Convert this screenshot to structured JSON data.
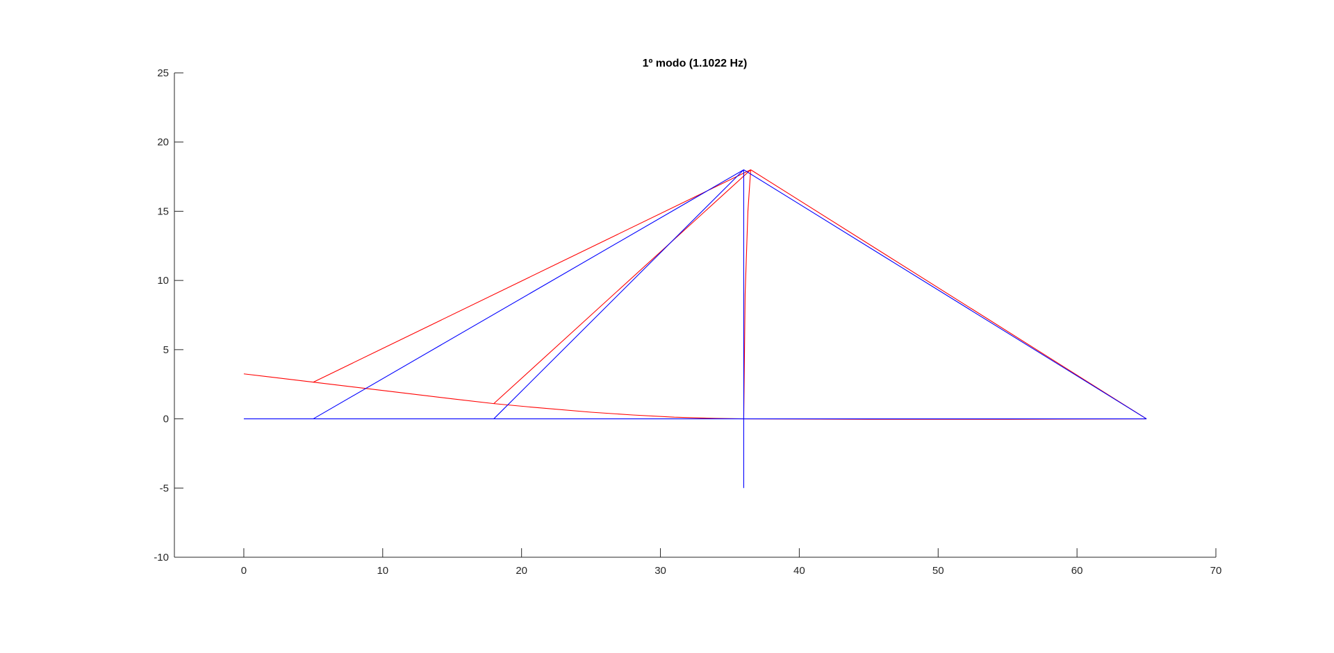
{
  "chart_data": {
    "type": "line",
    "title": "1º modo (1.1022 Hz)",
    "xlabel": "",
    "ylabel": "",
    "xlim": [
      -5,
      70
    ],
    "ylim": [
      -10,
      25
    ],
    "xticks": [
      0,
      10,
      20,
      30,
      40,
      50,
      60,
      70
    ],
    "yticks": [
      -10,
      -5,
      0,
      5,
      10,
      15,
      20,
      25
    ],
    "xtick_labels": [
      "0",
      "10",
      "20",
      "30",
      "40",
      "50",
      "60",
      "70"
    ],
    "ytick_labels": [
      "-10",
      "-5",
      "0",
      "5",
      "10",
      "15",
      "20",
      "25"
    ],
    "grid": false,
    "series": [
      {
        "color": "#ff0000",
        "segments": [
          [
            [
              0,
              3.25
            ],
            [
              5,
              2.65
            ],
            [
              10,
              2.05
            ],
            [
              15,
              1.45
            ],
            [
              18,
              1.1
            ],
            [
              21,
              0.82
            ],
            [
              25,
              0.48
            ],
            [
              28,
              0.28
            ],
            [
              31,
              0.12
            ],
            [
              34,
              0.03
            ],
            [
              36,
              0.0
            ]
          ],
          [
            [
              36,
              0.0
            ],
            [
              45,
              -0.03
            ],
            [
              55,
              -0.03
            ],
            [
              65,
              0.0
            ]
          ],
          [
            [
              5,
              2.65
            ],
            [
              36.5,
              18.0
            ]
          ],
          [
            [
              18,
              1.1
            ],
            [
              36.5,
              18.0
            ]
          ],
          [
            [
              36.5,
              18.0
            ],
            [
              65,
              0.0
            ]
          ],
          [
            [
              36,
              0.0
            ],
            [
              36.1,
              9.0
            ],
            [
              36.3,
              15.0
            ],
            [
              36.5,
              18.0
            ]
          ]
        ]
      },
      {
        "color": "#0000ff",
        "segments": [
          [
            [
              0,
              0
            ],
            [
              65,
              0
            ]
          ],
          [
            [
              5,
              0
            ],
            [
              36,
              18
            ]
          ],
          [
            [
              18,
              0
            ],
            [
              36,
              18
            ]
          ],
          [
            [
              36,
              18
            ],
            [
              65,
              0
            ]
          ],
          [
            [
              36,
              -5
            ],
            [
              36,
              18
            ]
          ]
        ]
      }
    ]
  }
}
